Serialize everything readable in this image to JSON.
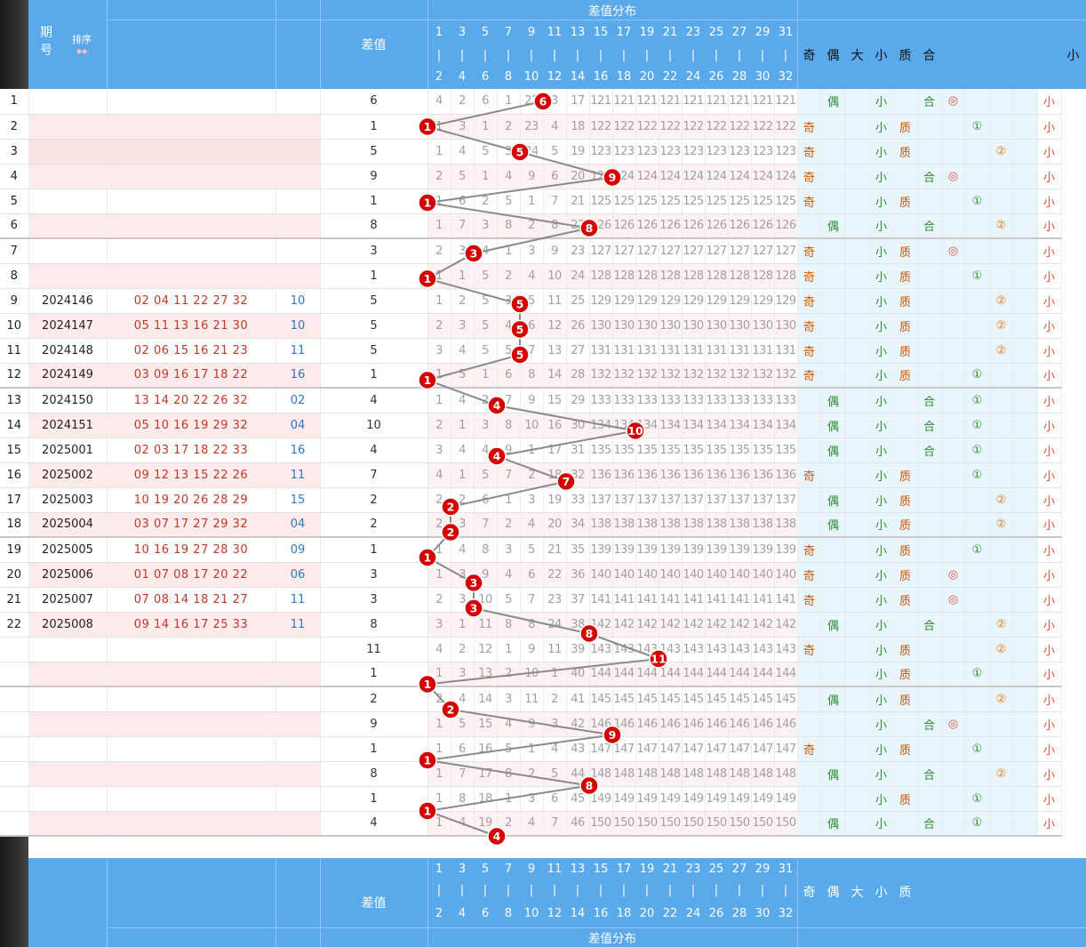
{
  "header": {
    "period_label": "期\n号",
    "sort_label": "排序",
    "sort_arrows": "◆◆",
    "diff_label": "差值",
    "dist_label": "差值分布",
    "top_numbers": [
      "1",
      "3",
      "5",
      "7",
      "9",
      "11",
      "13",
      "15",
      "17",
      "19",
      "21",
      "23",
      "25",
      "27",
      "29",
      "31"
    ],
    "bottom_numbers": [
      "2",
      "4",
      "6",
      "8",
      "10",
      "12",
      "14",
      "16",
      "18",
      "20",
      "22",
      "24",
      "26",
      "28",
      "30",
      "32"
    ],
    "pipe": "|",
    "attr_labels": [
      "奇",
      "偶",
      "大",
      "小",
      "质",
      "合",
      "",
      "",
      "",
      "",
      ""
    ],
    "right_label": "小"
  },
  "footer": {
    "diff_label": "差值",
    "dist_label": "差值分布",
    "attr_labels": [
      "奇",
      "偶",
      "大",
      "小",
      "质"
    ]
  },
  "rows": [
    {
      "row": "1",
      "issue": "",
      "nums": "",
      "sum": "",
      "diff": "6",
      "cells": [
        "4",
        "2",
        "6",
        "1",
        "22",
        "3",
        "17",
        "121",
        "121",
        "121",
        "121",
        "121",
        "121",
        "121",
        "121",
        "121"
      ],
      "attrs": [
        "",
        "偶",
        "",
        "小",
        "",
        "合",
        "◎",
        "",
        "",
        "",
        "小"
      ]
    },
    {
      "row": "2",
      "issue": "",
      "nums": "",
      "sum": "",
      "diff": "1",
      "cells": [
        "1",
        "3",
        "1",
        "2",
        "23",
        "4",
        "18",
        "122",
        "122",
        "122",
        "122",
        "122",
        "122",
        "122",
        "122",
        "122"
      ],
      "attrs": [
        "奇",
        "",
        "",
        "小",
        "质",
        "",
        "",
        "①",
        "",
        "",
        "小"
      ]
    },
    {
      "row": "3",
      "issue": "",
      "nums": "",
      "sum": "",
      "diff": "5",
      "cells": [
        "1",
        "4",
        "5",
        "3",
        "24",
        "5",
        "19",
        "123",
        "123",
        "123",
        "123",
        "123",
        "123",
        "123",
        "123",
        "123"
      ],
      "attrs": [
        "奇",
        "",
        "",
        "小",
        "质",
        "",
        "",
        "",
        "②",
        "",
        "小"
      ]
    },
    {
      "row": "4",
      "issue": "",
      "nums": "",
      "sum": "",
      "diff": "9",
      "cells": [
        "2",
        "5",
        "1",
        "4",
        "9",
        "6",
        "20",
        "124",
        "124",
        "124",
        "124",
        "124",
        "124",
        "124",
        "124",
        "124"
      ],
      "attrs": [
        "奇",
        "",
        "",
        "小",
        "",
        "合",
        "◎",
        "",
        "",
        "",
        "小"
      ]
    },
    {
      "row": "5",
      "issue": "",
      "nums": "",
      "sum": "",
      "diff": "1",
      "cells": [
        "1",
        "6",
        "2",
        "5",
        "1",
        "7",
        "21",
        "125",
        "125",
        "125",
        "125",
        "125",
        "125",
        "125",
        "125",
        "125"
      ],
      "attrs": [
        "奇",
        "",
        "",
        "小",
        "质",
        "",
        "",
        "①",
        "",
        "",
        "小"
      ]
    },
    {
      "row": "6",
      "issue": "",
      "nums": "",
      "sum": "",
      "diff": "8",
      "cells": [
        "1",
        "7",
        "3",
        "8",
        "2",
        "8",
        "22",
        "126",
        "126",
        "126",
        "126",
        "126",
        "126",
        "126",
        "126",
        "126"
      ],
      "attrs": [
        "",
        "偶",
        "",
        "小",
        "",
        "合",
        "",
        "",
        "②",
        "",
        "小"
      ]
    },
    {
      "row": "7",
      "issue": "",
      "nums": "",
      "sum": "",
      "diff": "3",
      "cells": [
        "2",
        "3",
        "4",
        "1",
        "3",
        "9",
        "23",
        "127",
        "127",
        "127",
        "127",
        "127",
        "127",
        "127",
        "127",
        "127"
      ],
      "attrs": [
        "奇",
        "",
        "",
        "小",
        "质",
        "",
        "◎",
        "",
        "",
        "",
        "小"
      ]
    },
    {
      "row": "8",
      "issue": "",
      "nums": "",
      "sum": "",
      "diff": "1",
      "cells": [
        "1",
        "1",
        "5",
        "2",
        "4",
        "10",
        "24",
        "128",
        "128",
        "128",
        "128",
        "128",
        "128",
        "128",
        "128",
        "128"
      ],
      "attrs": [
        "奇",
        "",
        "",
        "小",
        "质",
        "",
        "",
        "①",
        "",
        "",
        "小"
      ]
    },
    {
      "row": "9",
      "issue": "2024146",
      "nums": "02 04 11 22 27 32",
      "sum": "10",
      "diff": "5",
      "cells": [
        "1",
        "2",
        "5",
        "3",
        "5",
        "11",
        "25",
        "129",
        "129",
        "129",
        "129",
        "129",
        "129",
        "129",
        "129",
        "129"
      ],
      "attrs": [
        "奇",
        "",
        "",
        "小",
        "质",
        "",
        "",
        "",
        "②",
        "",
        "小"
      ]
    },
    {
      "row": "10",
      "issue": "2024147",
      "nums": "05 11 13 16 21 30",
      "sum": "10",
      "diff": "5",
      "cells": [
        "2",
        "3",
        "5",
        "4",
        "6",
        "12",
        "26",
        "130",
        "130",
        "130",
        "130",
        "130",
        "130",
        "130",
        "130",
        "130"
      ],
      "attrs": [
        "奇",
        "",
        "",
        "小",
        "质",
        "",
        "",
        "",
        "②",
        "",
        "小"
      ]
    },
    {
      "row": "11",
      "issue": "2024148",
      "nums": "02 06 15 16 21 23",
      "sum": "11",
      "diff": "5",
      "cells": [
        "3",
        "4",
        "5",
        "5",
        "7",
        "13",
        "27",
        "131",
        "131",
        "131",
        "131",
        "131",
        "131",
        "131",
        "131",
        "131"
      ],
      "attrs": [
        "奇",
        "",
        "",
        "小",
        "质",
        "",
        "",
        "",
        "②",
        "",
        "小"
      ]
    },
    {
      "row": "12",
      "issue": "2024149",
      "nums": "03 09 16 17 18 22",
      "sum": "16",
      "diff": "1",
      "cells": [
        "1",
        "5",
        "1",
        "6",
        "8",
        "14",
        "28",
        "132",
        "132",
        "132",
        "132",
        "132",
        "132",
        "132",
        "132",
        "132"
      ],
      "attrs": [
        "奇",
        "",
        "",
        "小",
        "质",
        "",
        "",
        "①",
        "",
        "",
        "小"
      ]
    },
    {
      "row": "13",
      "issue": "2024150",
      "nums": "13 14 20 22 26 32",
      "sum": "02",
      "diff": "4",
      "cells": [
        "1",
        "4",
        "2",
        "7",
        "9",
        "15",
        "29",
        "133",
        "133",
        "133",
        "133",
        "133",
        "133",
        "133",
        "133",
        "133"
      ],
      "attrs": [
        "",
        "偶",
        "",
        "小",
        "",
        "合",
        "",
        "①",
        "",
        "",
        "小"
      ]
    },
    {
      "row": "14",
      "issue": "2024151",
      "nums": "05 10 16 19 29 32",
      "sum": "04",
      "diff": "10",
      "cells": [
        "2",
        "1",
        "3",
        "8",
        "10",
        "16",
        "30",
        "134",
        "134",
        "134",
        "134",
        "134",
        "134",
        "134",
        "134",
        "134"
      ],
      "attrs": [
        "",
        "偶",
        "",
        "小",
        "",
        "合",
        "",
        "①",
        "",
        "",
        "小"
      ]
    },
    {
      "row": "15",
      "issue": "2025001",
      "nums": "02 03 17 18 22 33",
      "sum": "16",
      "diff": "4",
      "cells": [
        "3",
        "4",
        "4",
        "9",
        "1",
        "17",
        "31",
        "135",
        "135",
        "135",
        "135",
        "135",
        "135",
        "135",
        "135",
        "135"
      ],
      "attrs": [
        "",
        "偶",
        "",
        "小",
        "",
        "合",
        "",
        "①",
        "",
        "",
        "小"
      ]
    },
    {
      "row": "16",
      "issue": "2025002",
      "nums": "09 12 13 15 22 26",
      "sum": "11",
      "diff": "7",
      "cells": [
        "4",
        "1",
        "5",
        "7",
        "2",
        "18",
        "32",
        "136",
        "136",
        "136",
        "136",
        "136",
        "136",
        "136",
        "136",
        "136"
      ],
      "attrs": [
        "奇",
        "",
        "",
        "小",
        "质",
        "",
        "",
        "①",
        "",
        "",
        "小"
      ]
    },
    {
      "row": "17",
      "issue": "2025003",
      "nums": "10 19 20 26 28 29",
      "sum": "15",
      "diff": "2",
      "cells": [
        "2",
        "2",
        "6",
        "1",
        "3",
        "19",
        "33",
        "137",
        "137",
        "137",
        "137",
        "137",
        "137",
        "137",
        "137",
        "137"
      ],
      "attrs": [
        "",
        "偶",
        "",
        "小",
        "质",
        "",
        "",
        "",
        "②",
        "",
        "小"
      ]
    },
    {
      "row": "18",
      "issue": "2025004",
      "nums": "03 07 17 27 29 32",
      "sum": "04",
      "diff": "2",
      "cells": [
        "2",
        "3",
        "7",
        "2",
        "4",
        "20",
        "34",
        "138",
        "138",
        "138",
        "138",
        "138",
        "138",
        "138",
        "138",
        "138"
      ],
      "attrs": [
        "",
        "偶",
        "",
        "小",
        "质",
        "",
        "",
        "",
        "②",
        "",
        "小"
      ]
    },
    {
      "row": "19",
      "issue": "2025005",
      "nums": "10 16 19 27 28 30",
      "sum": "09",
      "diff": "1",
      "cells": [
        "1",
        "4",
        "8",
        "3",
        "5",
        "21",
        "35",
        "139",
        "139",
        "139",
        "139",
        "139",
        "139",
        "139",
        "139",
        "139"
      ],
      "attrs": [
        "奇",
        "",
        "",
        "小",
        "质",
        "",
        "",
        "①",
        "",
        "",
        "小"
      ]
    },
    {
      "row": "20",
      "issue": "2025006",
      "nums": "01 07 08 17 20 22",
      "sum": "06",
      "diff": "3",
      "cells": [
        "1",
        "3",
        "9",
        "4",
        "6",
        "22",
        "36",
        "140",
        "140",
        "140",
        "140",
        "140",
        "140",
        "140",
        "140",
        "140"
      ],
      "attrs": [
        "奇",
        "",
        "",
        "小",
        "质",
        "",
        "◎",
        "",
        "",
        "",
        "小"
      ]
    },
    {
      "row": "21",
      "issue": "2025007",
      "nums": "07 08 14 18 21 27",
      "sum": "11",
      "diff": "3",
      "cells": [
        "2",
        "3",
        "10",
        "5",
        "7",
        "23",
        "37",
        "141",
        "141",
        "141",
        "141",
        "141",
        "141",
        "141",
        "141",
        "141"
      ],
      "attrs": [
        "奇",
        "",
        "",
        "小",
        "质",
        "",
        "◎",
        "",
        "",
        "",
        "小"
      ]
    },
    {
      "row": "22",
      "issue": "2025008",
      "nums": "09 14 16 17 25 33",
      "sum": "11",
      "diff": "8",
      "cells": [
        "3",
        "1",
        "11",
        "8",
        "8",
        "24",
        "38",
        "142",
        "142",
        "142",
        "142",
        "142",
        "142",
        "142",
        "142",
        "142"
      ],
      "attrs": [
        "",
        "偶",
        "",
        "小",
        "",
        "合",
        "",
        "",
        "②",
        "",
        "小"
      ]
    },
    {
      "row": "",
      "issue": "",
      "nums": "",
      "sum": "",
      "diff": "11",
      "cells": [
        "4",
        "2",
        "12",
        "1",
        "9",
        "11",
        "39",
        "143",
        "143",
        "143",
        "143",
        "143",
        "143",
        "143",
        "143",
        "143"
      ],
      "attrs": [
        "奇",
        "",
        "",
        "小",
        "质",
        "",
        "",
        "",
        "②",
        "",
        "小"
      ]
    },
    {
      "row": "",
      "issue": "",
      "nums": "",
      "sum": "",
      "diff": "1",
      "cells": [
        "1",
        "3",
        "13",
        "2",
        "10",
        "1",
        "40",
        "144",
        "144",
        "144",
        "144",
        "144",
        "144",
        "144",
        "144",
        "144"
      ],
      "attrs": [
        "",
        "",
        "",
        "小",
        "质",
        "",
        "",
        "①",
        "",
        "",
        "小"
      ]
    },
    {
      "row": "",
      "issue": "",
      "nums": "",
      "sum": "",
      "diff": "2",
      "cells": [
        "2",
        "4",
        "14",
        "3",
        "11",
        "2",
        "41",
        "145",
        "145",
        "145",
        "145",
        "145",
        "145",
        "145",
        "145",
        "145"
      ],
      "attrs": [
        "",
        "偶",
        "",
        "小",
        "质",
        "",
        "",
        "",
        "②",
        "",
        "小"
      ]
    },
    {
      "row": "",
      "issue": "",
      "nums": "",
      "sum": "",
      "diff": "9",
      "cells": [
        "1",
        "5",
        "15",
        "4",
        "9",
        "3",
        "42",
        "146",
        "146",
        "146",
        "146",
        "146",
        "146",
        "146",
        "146",
        "146"
      ],
      "attrs": [
        "",
        "",
        "",
        "小",
        "",
        "合",
        "◎",
        "",
        "",
        "",
        "小"
      ]
    },
    {
      "row": "",
      "issue": "",
      "nums": "",
      "sum": "",
      "diff": "1",
      "cells": [
        "1",
        "6",
        "16",
        "5",
        "1",
        "4",
        "43",
        "147",
        "147",
        "147",
        "147",
        "147",
        "147",
        "147",
        "147",
        "147"
      ],
      "attrs": [
        "奇",
        "",
        "",
        "小",
        "质",
        "",
        "",
        "①",
        "",
        "",
        "小"
      ]
    },
    {
      "row": "",
      "issue": "",
      "nums": "",
      "sum": "",
      "diff": "8",
      "cells": [
        "1",
        "7",
        "17",
        "8",
        "2",
        "5",
        "44",
        "148",
        "148",
        "148",
        "148",
        "148",
        "148",
        "148",
        "148",
        "148"
      ],
      "attrs": [
        "",
        "偶",
        "",
        "小",
        "",
        "合",
        "",
        "",
        "②",
        "",
        "小"
      ]
    },
    {
      "row": "",
      "issue": "",
      "nums": "",
      "sum": "",
      "diff": "1",
      "cells": [
        "1",
        "8",
        "18",
        "1",
        "3",
        "6",
        "45",
        "149",
        "149",
        "149",
        "149",
        "149",
        "149",
        "149",
        "149",
        "149"
      ],
      "attrs": [
        "",
        "",
        "",
        "小",
        "质",
        "",
        "",
        "①",
        "",
        "",
        "小"
      ]
    },
    {
      "row": "",
      "issue": "",
      "nums": "",
      "sum": "",
      "diff": "4",
      "cells": [
        "1",
        "4",
        "19",
        "2",
        "4",
        "7",
        "46",
        "150",
        "150",
        "150",
        "150",
        "150",
        "150",
        "150",
        "150",
        "150"
      ],
      "attrs": [
        "",
        "偶",
        "",
        "小",
        "",
        "合",
        "",
        "①",
        "",
        "",
        "小"
      ]
    }
  ],
  "colors": {
    "header_blue": "#5aa9ea",
    "ball_red": "#d40000",
    "line_gray": "#8a8a8a",
    "stripe_pink": "#fdeaea",
    "attr_bg": "#e9f5fc"
  }
}
